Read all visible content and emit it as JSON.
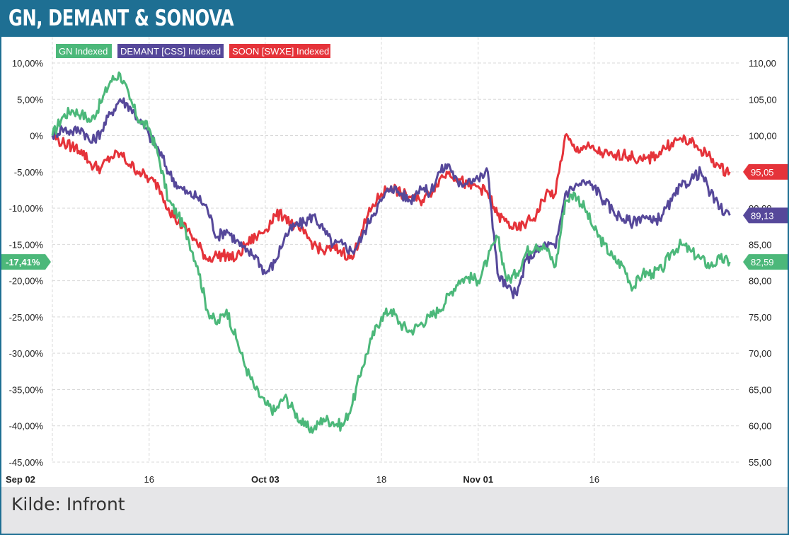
{
  "page": {
    "title": "GN, DEMANT & SONOVA",
    "source": "Kilde: Infront"
  },
  "colors": {
    "header": "#1e6f93",
    "gn": "#4cb87a",
    "demant": "#56489a",
    "soon": "#e5333a",
    "grid": "#d9d9d9"
  },
  "chart_data": {
    "type": "line",
    "title": "GN, DEMANT & SONOVA",
    "x_labels": [
      "Sep 02",
      "16",
      "Oct 03",
      "18",
      "Nov 01",
      "16"
    ],
    "x_labels_bold": [
      "Sep 02",
      "Oct 03",
      "Nov 01"
    ],
    "x_tick_days": [
      0,
      10,
      22,
      34,
      44,
      56
    ],
    "x_range_days": [
      0,
      71
    ],
    "left_axis": {
      "range": [
        -45,
        10
      ],
      "ticks": [
        "10,00%",
        "5,00%",
        "0%",
        "-5,00%",
        "-10,00%",
        "-15,00%",
        "-20,00%",
        "-25,00%",
        "-30,00%",
        "-35,00%",
        "-40,00%",
        "-45,00%"
      ]
    },
    "right_axis": {
      "range": [
        55,
        110
      ],
      "ticks": [
        "110,00",
        "105,00",
        "100,00",
        "95,00",
        "90,00",
        "85,00",
        "80,00",
        "75,00",
        "70,00",
        "65,00",
        "60,00",
        "55,00"
      ]
    },
    "legend": [
      "GN Indexed",
      "DEMANT [CSS] Indexed",
      "SOON [SWXE] Indexed"
    ],
    "last_value_labels": {
      "left": "-17,41%",
      "right": [
        "95,05",
        "89,13",
        "82,59"
      ]
    },
    "series": [
      {
        "name": "GN Indexed",
        "color": "#4cb87a",
        "x": [
          0,
          1,
          2,
          3,
          4,
          5,
          6,
          7,
          8,
          9,
          10,
          11,
          12,
          13,
          14,
          15,
          16,
          17,
          18,
          19,
          20,
          21,
          22,
          23,
          24,
          25,
          26,
          27,
          28,
          29,
          30,
          31,
          32,
          33,
          34,
          35,
          36,
          37,
          38,
          39,
          40,
          41,
          42,
          43,
          44,
          45,
          46,
          47,
          48,
          49,
          50,
          51,
          52,
          53,
          54,
          55,
          56,
          57,
          58,
          59,
          60,
          61,
          62,
          63,
          64,
          65,
          66,
          67,
          68,
          69,
          70
        ],
        "values": [
          0,
          2.5,
          3.5,
          3,
          2,
          4.5,
          7.5,
          8.5,
          5,
          2,
          1,
          -3,
          -9,
          -11,
          -14,
          -18,
          -24,
          -26,
          -24,
          -28,
          -32,
          -35,
          -37,
          -38,
          -36,
          -38,
          -40,
          -40.5,
          -39,
          -39.5,
          -40,
          -37,
          -32,
          -28,
          -25,
          -24,
          -26,
          -27,
          -26,
          -25,
          -24,
          -22,
          -20,
          -19.5,
          -20,
          -17,
          -14,
          -20,
          -19,
          -16,
          -15,
          -15.5,
          -18,
          -9,
          -8,
          -10,
          -13,
          -15,
          -17,
          -18,
          -21,
          -19,
          -19,
          -18.5,
          -16,
          -15,
          -16,
          -17,
          -18,
          -17,
          -17.41
        ]
      },
      {
        "name": "DEMANT [CSS] Indexed",
        "color": "#56489a",
        "x": [
          0,
          1,
          2,
          3,
          4,
          5,
          6,
          7,
          8,
          9,
          10,
          11,
          12,
          13,
          14,
          15,
          16,
          17,
          18,
          19,
          20,
          21,
          22,
          23,
          24,
          25,
          26,
          27,
          28,
          29,
          30,
          31,
          32,
          33,
          34,
          35,
          36,
          37,
          38,
          39,
          40,
          41,
          42,
          43,
          44,
          45,
          46,
          47,
          48,
          49,
          50,
          51,
          52,
          53,
          54,
          55,
          56,
          57,
          58,
          59,
          60,
          61,
          62,
          63,
          64,
          65,
          66,
          67,
          68,
          69,
          70
        ],
        "values": [
          0,
          1,
          0.5,
          1,
          -1,
          0.5,
          3,
          5,
          4,
          2,
          0,
          -2,
          -5,
          -7,
          -8,
          -8.5,
          -10,
          -14,
          -13,
          -14.5,
          -16,
          -16.5,
          -19,
          -17.5,
          -14,
          -12.5,
          -12,
          -11,
          -13,
          -15,
          -15,
          -16,
          -14,
          -11,
          -9,
          -7,
          -8,
          -9,
          -7,
          -8,
          -5,
          -4,
          -7,
          -6,
          -6,
          -5,
          -19,
          -21,
          -22,
          -17,
          -16,
          -15,
          -15.5,
          -8,
          -7,
          -6.5,
          -7,
          -9,
          -10.5,
          -11.5,
          -12,
          -11,
          -12,
          -11,
          -9,
          -7,
          -6,
          -5,
          -8,
          -10,
          -11
        ]
      },
      {
        "name": "SOON [SWXE] Indexed",
        "color": "#e5333a",
        "x": [
          0,
          1,
          2,
          3,
          4,
          5,
          6,
          7,
          8,
          9,
          10,
          11,
          12,
          13,
          14,
          15,
          16,
          17,
          18,
          19,
          20,
          21,
          22,
          23,
          24,
          25,
          26,
          27,
          28,
          29,
          30,
          31,
          32,
          33,
          34,
          35,
          36,
          37,
          38,
          39,
          40,
          41,
          42,
          43,
          44,
          45,
          46,
          47,
          48,
          49,
          50,
          51,
          52,
          53,
          54,
          55,
          56,
          57,
          58,
          59,
          60,
          61,
          62,
          63,
          64,
          65,
          66,
          67,
          68,
          69,
          70
        ],
        "values": [
          0,
          -1,
          -1.5,
          -2,
          -4,
          -4.5,
          -3,
          -2.5,
          -4,
          -5,
          -6,
          -7,
          -10,
          -12,
          -13,
          -15,
          -17,
          -16.5,
          -16.5,
          -17,
          -15,
          -14,
          -13,
          -11,
          -11,
          -12.5,
          -13.5,
          -15,
          -16,
          -15.5,
          -16,
          -17,
          -13,
          -10,
          -8,
          -7,
          -8,
          -8.5,
          -9,
          -8,
          -6,
          -5,
          -6,
          -7,
          -7,
          -8,
          -11,
          -12,
          -13,
          -12,
          -11,
          -8,
          -8,
          0,
          -2,
          -1.5,
          -2,
          -2.5,
          -3,
          -2.5,
          -3,
          -3.5,
          -3,
          -2,
          -1,
          -0.5,
          -1,
          -2,
          -3,
          -4.5,
          -5
        ]
      }
    ]
  }
}
